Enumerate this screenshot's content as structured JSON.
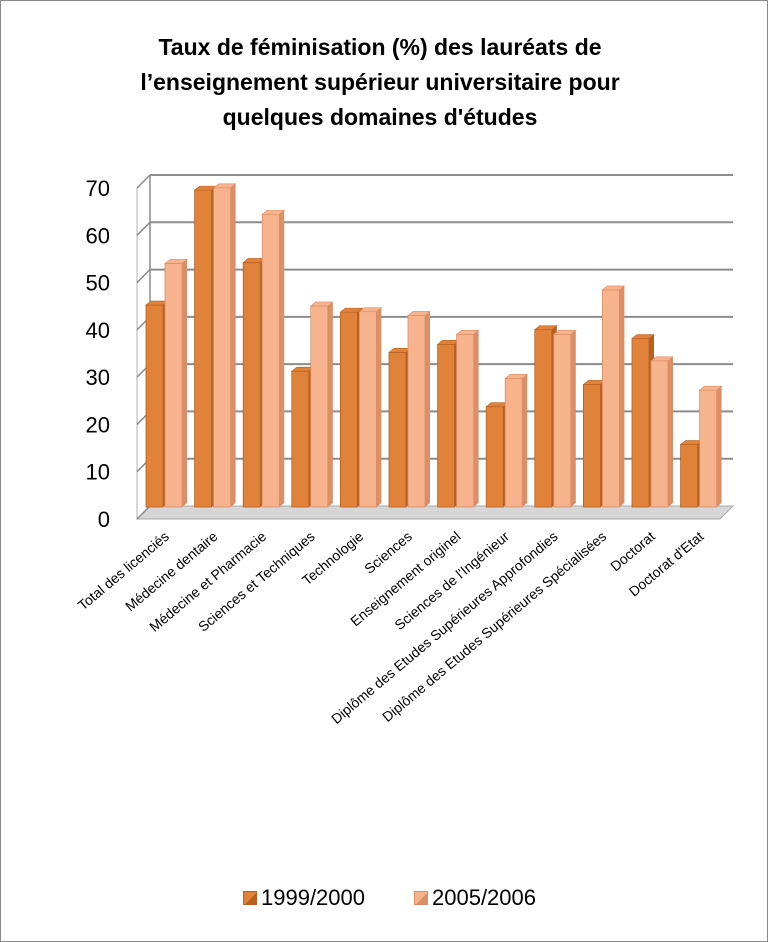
{
  "chart_data": {
    "type": "bar",
    "title_lines": [
      "Taux de féminisation (%) des lauréats de",
      "l’enseignement supérieur universitaire pour",
      "quelques domaines d'études"
    ],
    "categories": [
      "Total des licenciés",
      "Médecine dentaire",
      "Médecine et Pharmacie",
      "Sciences et Techniques",
      "Technologie",
      "Sciences",
      "Enseignement originel",
      "Sciences de l'Ingénieur",
      "Diplôme des Etudes Supérieures Approfondies",
      "Diplôme des Etudes Supérieures Spécialisées",
      "Doctorat",
      "Doctorat d'Etat"
    ],
    "series": [
      {
        "name": "1999/2000",
        "values": [
          42.5,
          66.8,
          51.5,
          28.5,
          41,
          32.5,
          34.2,
          21,
          37.3,
          25.7,
          35.4,
          13
        ]
      },
      {
        "name": "2005/2006",
        "values": [
          51.3,
          67.3,
          61.7,
          42.3,
          41.1,
          40.3,
          36.3,
          27,
          36.3,
          45.7,
          30.7,
          24.5
        ]
      }
    ],
    "yticks": [
      0,
      10,
      20,
      30,
      40,
      50,
      60,
      70
    ],
    "ylim": [
      0,
      70
    ],
    "grid": true,
    "legend_position": "bottom",
    "colors": {
      "series1": "#e0823a",
      "series1_dark": "#b8601f",
      "series2": "#f7b38e",
      "series2_dark": "#dc8e67",
      "grid": "#8c8c8c",
      "floor": "#d6d6d6"
    }
  }
}
